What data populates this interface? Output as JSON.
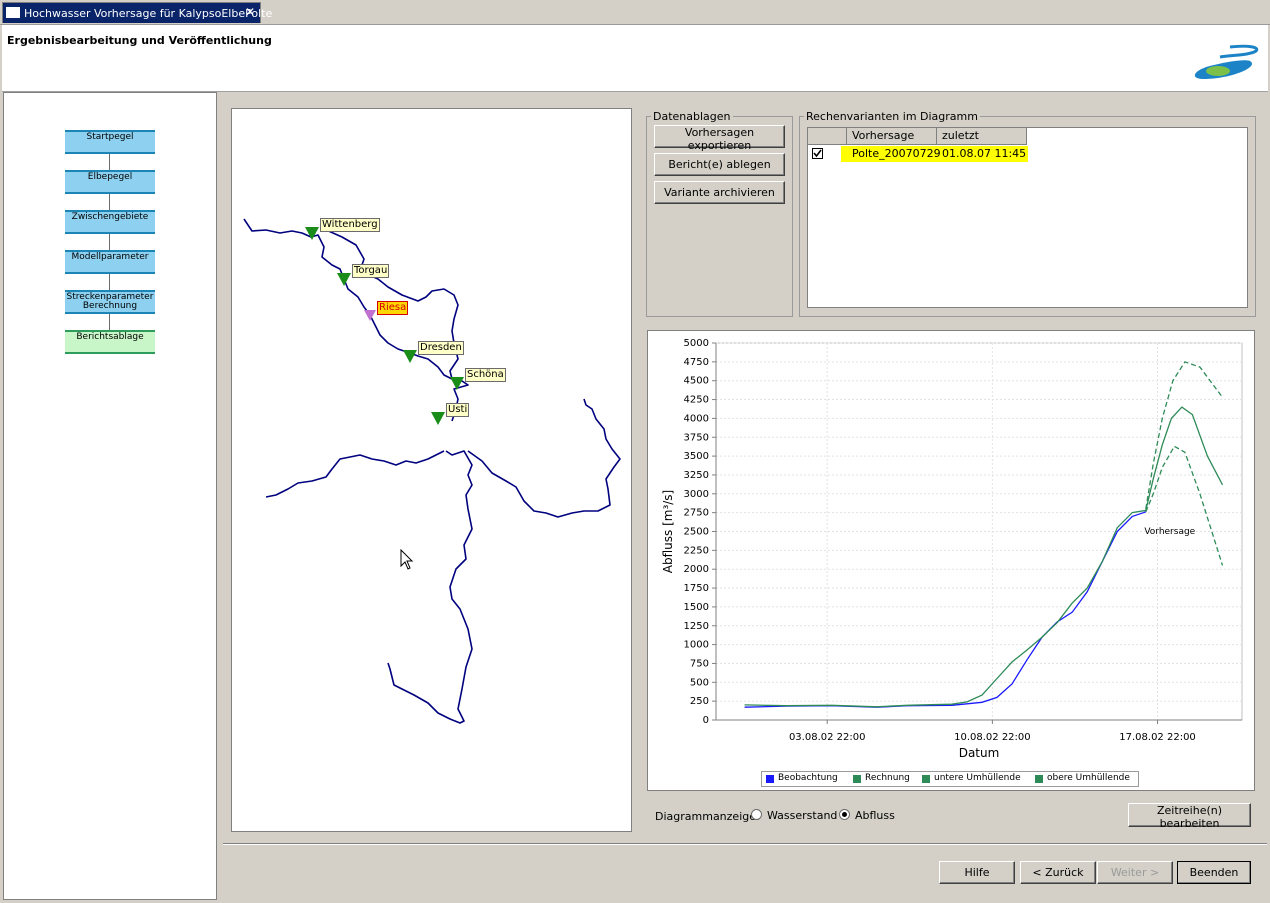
{
  "tab": {
    "title": "Hochwasser Vorhersage für KalypsoElbePolte",
    "close": "✕"
  },
  "header": {
    "title": "Ergebnisbearbeitung und Veröffentlichung"
  },
  "steps": [
    {
      "label": "Startpegel"
    },
    {
      "label": "Elbepegel"
    },
    {
      "label": "Zwischengebiete"
    },
    {
      "label": "Modellparameter"
    },
    {
      "label": "Streckenparameter Berechnung"
    },
    {
      "label": "Berichtsablage"
    }
  ],
  "map": {
    "stations": [
      {
        "name": "Wittenberg",
        "color": "#1a8c1a"
      },
      {
        "name": "Torgau",
        "color": "#1a8c1a"
      },
      {
        "name": "Riesa",
        "color": "#c070d0"
      },
      {
        "name": "Dresden",
        "color": "#1a8c1a"
      },
      {
        "name": "Schöna",
        "color": "#1a8c1a"
      },
      {
        "name": "Usti",
        "color": "#1a8c1a"
      }
    ]
  },
  "datenablagen": {
    "legend": "Datenablagen",
    "export_label": "Vorhersagen exportieren",
    "report_label": "Bericht(e) ablegen",
    "archive_label": "Variante archivieren"
  },
  "varianten": {
    "legend": "Rechenvarianten im Diagramm",
    "columns": [
      "",
      "Vorhersage",
      "zuletzt geändert"
    ],
    "rows": [
      {
        "checked": true,
        "name": "Polte_20070729",
        "changed": "01.08.07 11:45"
      }
    ],
    "highlight": "#ffff00"
  },
  "chart_data": {
    "type": "line",
    "title": "",
    "xlabel": "Datum",
    "ylabel": "Abfluss [m³/s]",
    "ylim": [
      0,
      5000
    ],
    "y_ticks": [
      "0",
      "250",
      "500",
      "750",
      "1000",
      "1250",
      "1500",
      "1750",
      "2000",
      "2250",
      "2500",
      "2750",
      "3000",
      "3250",
      "3500",
      "3750",
      "4000",
      "4250",
      "4500",
      "4750",
      "5000"
    ],
    "x_ticks": [
      "03.08.02 22:00",
      "10.08.02 22:00",
      "17.08.02 22:00"
    ],
    "xlim_days": [
      -7.7,
      27.3
    ],
    "annotation": {
      "text": "Vorhersage",
      "x": 20.8,
      "y": 2520
    },
    "legend_position": "bottom",
    "grid": true,
    "series": [
      {
        "name": "Beobachtung",
        "color": "#1a1aff",
        "style": "solid",
        "points": [
          [
            -5.8,
            170
          ],
          [
            -3,
            185
          ],
          [
            0,
            190
          ],
          [
            3,
            170
          ],
          [
            5,
            190
          ],
          [
            8,
            195
          ],
          [
            10,
            235
          ],
          [
            11,
            300
          ],
          [
            12,
            480
          ],
          [
            13,
            800
          ],
          [
            14,
            1100
          ],
          [
            15,
            1300
          ],
          [
            16,
            1430
          ],
          [
            17,
            1700
          ],
          [
            18,
            2100
          ],
          [
            19,
            2500
          ],
          [
            20,
            2700
          ],
          [
            20.9,
            2760
          ]
        ]
      },
      {
        "name": "Rechnung",
        "color": "#2e8b57",
        "style": "solid",
        "points": [
          [
            -5.8,
            200
          ],
          [
            -3,
            190
          ],
          [
            0,
            195
          ],
          [
            3,
            175
          ],
          [
            5,
            195
          ],
          [
            8,
            210
          ],
          [
            9,
            240
          ],
          [
            10,
            330
          ],
          [
            11,
            550
          ],
          [
            12,
            770
          ],
          [
            13,
            930
          ],
          [
            14,
            1100
          ],
          [
            15,
            1290
          ],
          [
            16,
            1550
          ],
          [
            17,
            1750
          ],
          [
            18,
            2100
          ],
          [
            19,
            2550
          ],
          [
            20,
            2750
          ],
          [
            20.9,
            2780
          ],
          [
            21.4,
            3200
          ],
          [
            22,
            3650
          ],
          [
            22.6,
            4000
          ],
          [
            23.3,
            4150
          ],
          [
            24,
            4050
          ],
          [
            25,
            3500
          ],
          [
            26,
            3120
          ]
        ]
      },
      {
        "name": "untere Umhüllende",
        "color": "#2e8b57",
        "style": "dashed",
        "points": [
          [
            20.9,
            2760
          ],
          [
            21.4,
            3000
          ],
          [
            22,
            3350
          ],
          [
            22.8,
            3630
          ],
          [
            23.5,
            3550
          ],
          [
            24.5,
            3000
          ],
          [
            26,
            2050
          ]
        ]
      },
      {
        "name": "obere Umhüllende",
        "color": "#2e8b57",
        "style": "dashed",
        "points": [
          [
            20.9,
            2800
          ],
          [
            21.4,
            3400
          ],
          [
            22,
            4000
          ],
          [
            22.7,
            4500
          ],
          [
            23.5,
            4750
          ],
          [
            24.5,
            4680
          ],
          [
            26,
            4280
          ]
        ]
      }
    ]
  },
  "diagram_mode": {
    "label": "Diagrammanzeige:",
    "options": [
      "Wasserstand",
      "Abfluss"
    ],
    "selected": "Abfluss"
  },
  "timeseries_label": "Zeitreihe(n) bearbeiten",
  "nav": {
    "help": "Hilfe",
    "back": "< Zurück",
    "next": "Weiter >",
    "finish": "Beenden"
  }
}
